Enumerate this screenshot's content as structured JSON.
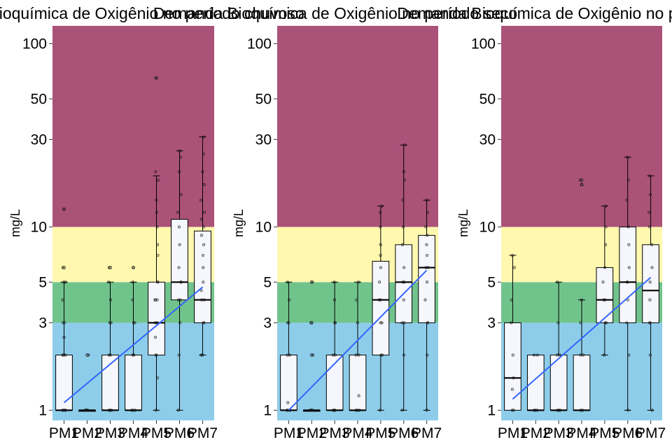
{
  "colors": {
    "band_high": "#AB5279",
    "band_mid": "#FFF8AE",
    "band_good": "#71C38C",
    "band_low": "#8DCDEA",
    "box_fill": "#F6F7FD",
    "trend": "#3366FF"
  },
  "chart_data": [
    {
      "type": "boxplot",
      "title": "Demanda Bioquímica de Oxigênio no período chuvoso",
      "ylabel": "mg/L",
      "yscale": "log",
      "ylim": [
        0.88,
        125
      ],
      "yticks": [
        "1",
        "3",
        "5",
        "10",
        "30",
        "50",
        "100"
      ],
      "categories": [
        "PM1",
        "PM2",
        "PM3",
        "PM4",
        "PM5",
        "PM6",
        "PM7"
      ],
      "bands": [
        {
          "from": 0.88,
          "to": 3,
          "color": "#8DCDEA"
        },
        {
          "from": 3,
          "to": 5,
          "color": "#71C38C"
        },
        {
          "from": 5,
          "to": 10,
          "color": "#FFF8AE"
        },
        {
          "from": 10,
          "to": 125,
          "color": "#AB5279"
        }
      ],
      "boxes": [
        {
          "min": 1,
          "q1": 1,
          "median": 1,
          "q3": 2,
          "max": 5,
          "outliers": [
            6,
            12.5
          ]
        },
        {
          "min": 1,
          "q1": 1,
          "median": 1,
          "q3": 1,
          "max": 1,
          "outliers": [
            2
          ]
        },
        {
          "min": 1,
          "q1": 1,
          "median": 1,
          "q3": 2,
          "max": 5,
          "outliers": [
            6
          ]
        },
        {
          "min": 1,
          "q1": 1,
          "median": 1,
          "q3": 2,
          "max": 5,
          "outliers": [
            6
          ]
        },
        {
          "min": 1,
          "q1": 2,
          "median": 3,
          "q3": 5,
          "max": 19,
          "outliers": [
            65
          ]
        },
        {
          "min": 1,
          "q1": 4,
          "median": 5,
          "q3": 11,
          "max": 26,
          "outliers": []
        },
        {
          "min": 2,
          "q1": 3,
          "median": 4,
          "q3": 9.5,
          "max": 31,
          "outliers": []
        }
      ],
      "points": [
        [
          1,
          1,
          1,
          1,
          2,
          2,
          2,
          2.5,
          3,
          3,
          4,
          5,
          5,
          6,
          12.5
        ],
        [
          1,
          1,
          1,
          1,
          1,
          1,
          2
        ],
        [
          1,
          1,
          1,
          2,
          2,
          3,
          3,
          4,
          5,
          6
        ],
        [
          1,
          1,
          1,
          2,
          2,
          3,
          3,
          4,
          5,
          6
        ],
        [
          1,
          1.5,
          2,
          2,
          2.5,
          3,
          3,
          4,
          4,
          4,
          5,
          5,
          7,
          8,
          10,
          12,
          14,
          18,
          20,
          65
        ],
        [
          1,
          2,
          3,
          4,
          4,
          5,
          5,
          6,
          8,
          10,
          12,
          15,
          20,
          24,
          26
        ],
        [
          2,
          2,
          3,
          3,
          4,
          4,
          4.5,
          5,
          6,
          7,
          8,
          9,
          10,
          11,
          12,
          14,
          17,
          20,
          25,
          31
        ]
      ],
      "trend": {
        "from": 1.1,
        "to": 4.7
      }
    },
    {
      "type": "boxplot",
      "title": "Demanda Bioquímica de Oxigênio no período seco",
      "ylabel": "mg/L",
      "yscale": "log",
      "ylim": [
        0.88,
        125
      ],
      "yticks": [
        "1",
        "3",
        "5",
        "10",
        "30",
        "50",
        "100"
      ],
      "categories": [
        "PM1",
        "PM2",
        "PM3",
        "PM4",
        "PM5",
        "PM6",
        "PM7"
      ],
      "bands": [
        {
          "from": 0.88,
          "to": 3,
          "color": "#8DCDEA"
        },
        {
          "from": 3,
          "to": 5,
          "color": "#71C38C"
        },
        {
          "from": 5,
          "to": 10,
          "color": "#FFF8AE"
        },
        {
          "from": 10,
          "to": 125,
          "color": "#AB5279"
        }
      ],
      "boxes": [
        {
          "min": 1,
          "q1": 1,
          "median": 1,
          "q3": 2,
          "max": 5,
          "outliers": []
        },
        {
          "min": 1,
          "q1": 1,
          "median": 1,
          "q3": 1,
          "max": 1,
          "outliers": [
            2,
            3,
            5
          ]
        },
        {
          "min": 1,
          "q1": 1,
          "median": 1,
          "q3": 2,
          "max": 5,
          "outliers": []
        },
        {
          "min": 1,
          "q1": 1,
          "median": 1,
          "q3": 2,
          "max": 5,
          "outliers": []
        },
        {
          "min": 1,
          "q1": 2,
          "median": 4,
          "q3": 6.5,
          "max": 13,
          "outliers": []
        },
        {
          "min": 1,
          "q1": 3,
          "median": 5,
          "q3": 8,
          "max": 28,
          "outliers": []
        },
        {
          "min": 1,
          "q1": 3,
          "median": 6,
          "q3": 9,
          "max": 14,
          "outliers": []
        }
      ],
      "points": [
        [
          1,
          1,
          1,
          1,
          1.1,
          2,
          2,
          3,
          3,
          4,
          5
        ],
        [
          1,
          1,
          1,
          1,
          1,
          2,
          3,
          5
        ],
        [
          1,
          1,
          1,
          1,
          2,
          2,
          3,
          3,
          4,
          5
        ],
        [
          1,
          1,
          1,
          1.2,
          2,
          2,
          3,
          4,
          5
        ],
        [
          1,
          2,
          2,
          3,
          3,
          4,
          4,
          5,
          6,
          7,
          8,
          10,
          12,
          13
        ],
        [
          1,
          2,
          3,
          3,
          4,
          5,
          5,
          6,
          8,
          10,
          14,
          18,
          20,
          28
        ],
        [
          1,
          2,
          3,
          3,
          4,
          5,
          6,
          6,
          7,
          8,
          9,
          10,
          12,
          14
        ]
      ],
      "trend": {
        "from": 1.0,
        "to": 5.8
      }
    },
    {
      "type": "boxplot",
      "title": "Demanda Bioquímica de Oxigênio no período",
      "ylabel": "mg/L",
      "yscale": "log",
      "ylim": [
        0.88,
        125
      ],
      "yticks": [
        "1",
        "3",
        "5",
        "10",
        "30",
        "50",
        "100"
      ],
      "categories": [
        "PM1",
        "PM2",
        "PM3",
        "PM4",
        "PM5",
        "PM6",
        "PM7"
      ],
      "bands": [
        {
          "from": 0.88,
          "to": 3,
          "color": "#8DCDEA"
        },
        {
          "from": 3,
          "to": 5,
          "color": "#71C38C"
        },
        {
          "from": 5,
          "to": 10,
          "color": "#FFF8AE"
        },
        {
          "from": 10,
          "to": 125,
          "color": "#AB5279"
        }
      ],
      "boxes": [
        {
          "min": 1,
          "q1": 1,
          "median": 1.5,
          "q3": 3,
          "max": 7,
          "outliers": []
        },
        {
          "min": 1,
          "q1": 1,
          "median": 1,
          "q3": 2,
          "max": 2,
          "outliers": []
        },
        {
          "min": 1,
          "q1": 1,
          "median": 1,
          "q3": 2,
          "max": 5,
          "outliers": []
        },
        {
          "min": 1,
          "q1": 1,
          "median": 1,
          "q3": 2,
          "max": 4,
          "outliers": [
            17,
            18
          ]
        },
        {
          "min": 2,
          "q1": 3,
          "median": 4,
          "q3": 6,
          "max": 13,
          "outliers": []
        },
        {
          "min": 1,
          "q1": 3,
          "median": 5,
          "q3": 10,
          "max": 24,
          "outliers": []
        },
        {
          "min": 1,
          "q1": 3,
          "median": 4.5,
          "q3": 8,
          "max": 19,
          "outliers": []
        }
      ],
      "points": [
        [
          1,
          1,
          1.3,
          1.5,
          2,
          3,
          4,
          6,
          7
        ],
        [
          1,
          1,
          1,
          2,
          2
        ],
        [
          1,
          1,
          1,
          2,
          2,
          3,
          5
        ],
        [
          1,
          1,
          2,
          2,
          3,
          4,
          17,
          18
        ],
        [
          2,
          3,
          3,
          4,
          4,
          5,
          6,
          8,
          10,
          13
        ],
        [
          1,
          2,
          3,
          4,
          5,
          5,
          6,
          8,
          10,
          14,
          18,
          24
        ],
        [
          1,
          2,
          3,
          3,
          4,
          5,
          6,
          8,
          10,
          12,
          15,
          19
        ]
      ],
      "trend": {
        "from": 1.15,
        "to": 5.3
      }
    }
  ]
}
